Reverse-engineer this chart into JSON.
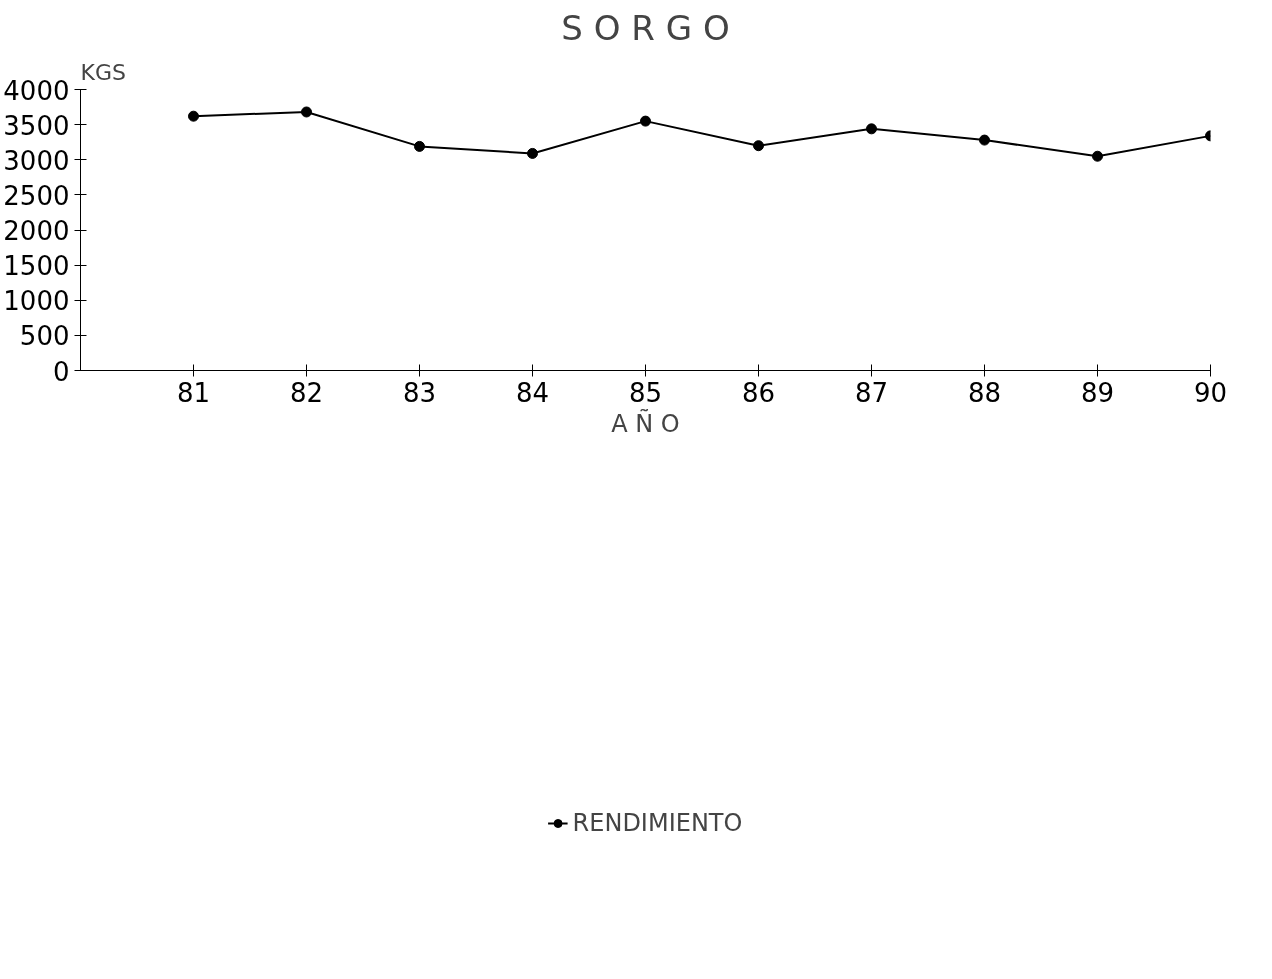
{
  "chart_data": {
    "type": "line",
    "title": "S O R G O",
    "ylabel": "KGS",
    "xlabel": "A Ñ O",
    "x": [
      81,
      82,
      83,
      84,
      85,
      86,
      87,
      88,
      89,
      90
    ],
    "series": [
      {
        "name": "RENDIMIENTO",
        "color": "#000000",
        "values": [
          3620,
          3680,
          3190,
          3090,
          3550,
          3200,
          3440,
          3280,
          3050,
          3340
        ]
      }
    ],
    "xlim": [
      80,
      90
    ],
    "xticks": [
      81,
      82,
      83,
      84,
      85,
      86,
      87,
      88,
      89,
      90
    ],
    "ylim": [
      0,
      4000
    ],
    "yticks": [
      0,
      500,
      1000,
      1500,
      2000,
      2500,
      3000,
      3500,
      4000
    ],
    "grid": false,
    "legend": "bottom",
    "marker": "circle",
    "line_style": "solid"
  }
}
